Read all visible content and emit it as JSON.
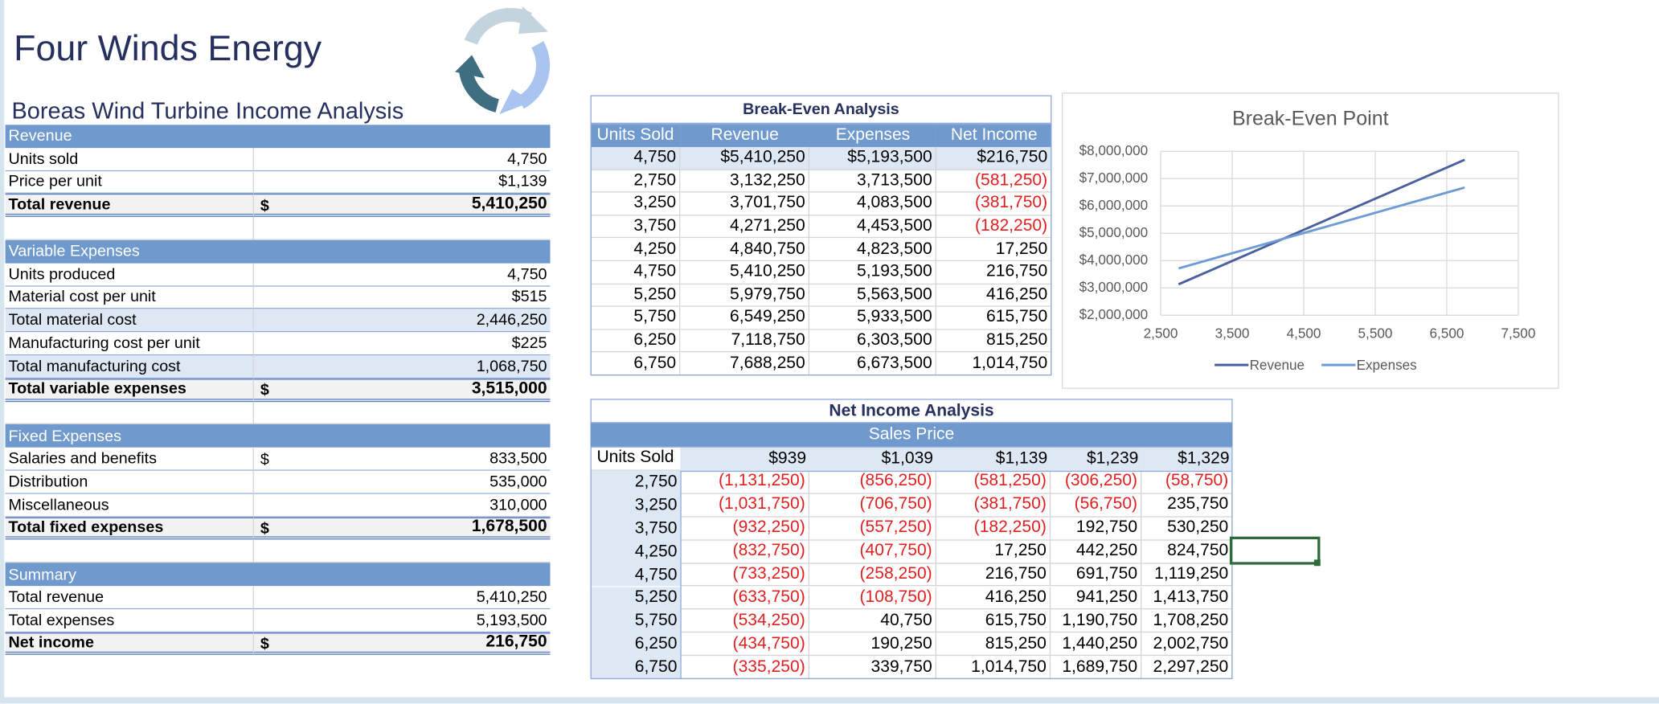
{
  "header": {
    "title": "Four Winds Energy",
    "subtitle": "Boreas Wind Turbine Income Analysis"
  },
  "income_table": {
    "sections": [
      {
        "title": "Revenue",
        "rows": [
          {
            "label": "Units sold",
            "value": "4,750"
          },
          {
            "label": "Price per unit",
            "value": "$1,139"
          }
        ],
        "total": {
          "label": "Total revenue",
          "currency": "$",
          "value": "5,410,250"
        }
      },
      {
        "title": "Variable Expenses",
        "rows": [
          {
            "label": "Units produced",
            "value": "4,750"
          },
          {
            "label": "Material cost per unit",
            "value": "$515"
          },
          {
            "label": "Total material cost",
            "value": "2,446,250",
            "shaded": true
          },
          {
            "label": "Manufacturing cost per unit",
            "value": "$225"
          },
          {
            "label": "Total manufacturing cost",
            "value": "1,068,750",
            "shaded": true
          }
        ],
        "total": {
          "label": "Total variable expenses",
          "currency": "$",
          "value": "3,515,000"
        }
      },
      {
        "title": "Fixed Expenses",
        "rows": [
          {
            "label": "Salaries and benefits",
            "currency": "$",
            "value": "833,500"
          },
          {
            "label": "Distribution",
            "value": "535,000"
          },
          {
            "label": "Miscellaneous",
            "value": "310,000"
          }
        ],
        "total": {
          "label": "Total fixed expenses",
          "currency": "$",
          "value": "1,678,500"
        }
      },
      {
        "title": "Summary",
        "rows": [
          {
            "label": "Total revenue",
            "value": "5,410,250"
          },
          {
            "label": "Total expenses",
            "value": "5,193,500"
          }
        ],
        "total": {
          "label": "Net income",
          "currency": "$",
          "value": "216,750"
        }
      }
    ]
  },
  "break_even_table": {
    "title": "Break-Even Analysis",
    "columns": [
      "Units Sold",
      "Revenue",
      "Expenses",
      "Net Income"
    ],
    "rows": [
      [
        "4,750",
        "$5,410,250",
        "$5,193,500",
        "$216,750"
      ],
      [
        "2,750",
        "3,132,250",
        "3,713,500",
        "(581,250)"
      ],
      [
        "3,250",
        "3,701,750",
        "4,083,500",
        "(381,750)"
      ],
      [
        "3,750",
        "4,271,250",
        "4,453,500",
        "(182,250)"
      ],
      [
        "4,250",
        "4,840,750",
        "4,823,500",
        "17,250"
      ],
      [
        "4,750",
        "5,410,250",
        "5,193,500",
        "216,750"
      ],
      [
        "5,250",
        "5,979,750",
        "5,563,500",
        "416,250"
      ],
      [
        "5,750",
        "6,549,250",
        "5,933,500",
        "615,750"
      ],
      [
        "6,250",
        "7,118,750",
        "6,303,500",
        "815,250"
      ],
      [
        "6,750",
        "7,688,250",
        "6,673,500",
        "1,014,750"
      ]
    ]
  },
  "net_income_table": {
    "title": "Net Income Analysis",
    "group_header": "Sales Price",
    "corner": "Units Sold",
    "prices": [
      "$939",
      "$1,039",
      "$1,139",
      "$1,239",
      "$1,329"
    ],
    "rows": [
      {
        "units": "2,750",
        "values": [
          "(1,131,250)",
          "(856,250)",
          "(581,250)",
          "(306,250)",
          "(58,750)"
        ]
      },
      {
        "units": "3,250",
        "values": [
          "(1,031,750)",
          "(706,750)",
          "(381,750)",
          "(56,750)",
          "235,750"
        ]
      },
      {
        "units": "3,750",
        "values": [
          "(932,250)",
          "(557,250)",
          "(182,250)",
          "192,750",
          "530,250"
        ]
      },
      {
        "units": "4,250",
        "values": [
          "(832,750)",
          "(407,750)",
          "17,250",
          "442,250",
          "824,750"
        ]
      },
      {
        "units": "4,750",
        "values": [
          "(733,250)",
          "(258,250)",
          "216,750",
          "691,750",
          "1,119,250"
        ]
      },
      {
        "units": "5,250",
        "values": [
          "(633,750)",
          "(108,750)",
          "416,250",
          "941,250",
          "1,413,750"
        ]
      },
      {
        "units": "5,750",
        "values": [
          "(534,250)",
          "40,750",
          "615,750",
          "1,190,750",
          "1,708,250"
        ]
      },
      {
        "units": "6,250",
        "values": [
          "(434,750)",
          "190,250",
          "815,250",
          "1,440,250",
          "2,002,750"
        ]
      },
      {
        "units": "6,750",
        "values": [
          "(335,250)",
          "339,750",
          "1,014,750",
          "1,689,750",
          "2,297,250"
        ]
      }
    ]
  },
  "chart_data": {
    "type": "line",
    "title": "Break-Even Point",
    "x": [
      2750,
      3250,
      3750,
      4250,
      4750,
      5250,
      5750,
      6250,
      6750
    ],
    "series": [
      {
        "name": "Revenue",
        "color": "#4a5fa0",
        "values": [
          3132250,
          3701750,
          4271250,
          4840750,
          5410250,
          5979750,
          6549250,
          7118750,
          7688250
        ]
      },
      {
        "name": "Expenses",
        "color": "#6f9bd4",
        "values": [
          3713500,
          4083500,
          4453500,
          4823500,
          5193500,
          5563500,
          5933500,
          6303500,
          6673500
        ]
      }
    ],
    "xlim": [
      2500,
      7500
    ],
    "xticks": [
      {
        "value": 2500,
        "label": "2,500"
      },
      {
        "value": 3500,
        "label": "3,500"
      },
      {
        "value": 4500,
        "label": "4,500"
      },
      {
        "value": 5500,
        "label": "5,500"
      },
      {
        "value": 6500,
        "label": "6,500"
      },
      {
        "value": 7500,
        "label": "7,500"
      }
    ],
    "ylim": [
      2000000,
      8000000
    ],
    "yticks": [
      {
        "value": 2000000,
        "label": "$2,000,000"
      },
      {
        "value": 3000000,
        "label": "$3,000,000"
      },
      {
        "value": 4000000,
        "label": "$4,000,000"
      },
      {
        "value": 5000000,
        "label": "$5,000,000"
      },
      {
        "value": 6000000,
        "label": "$6,000,000"
      },
      {
        "value": 7000000,
        "label": "$7,000,000"
      },
      {
        "value": 8000000,
        "label": "$8,000,000"
      }
    ],
    "grid": true,
    "legend": "bottom"
  }
}
